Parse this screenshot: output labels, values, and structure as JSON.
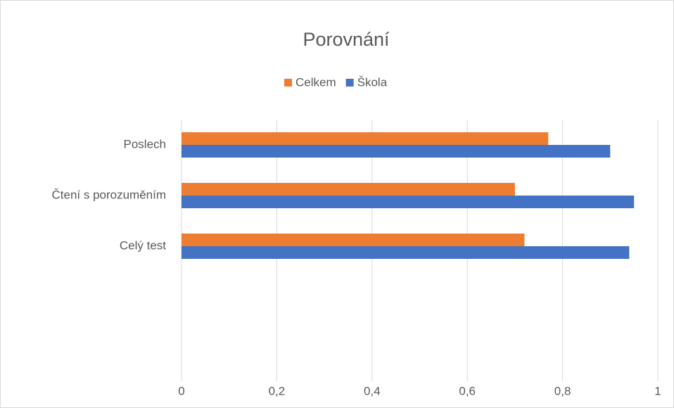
{
  "chart_data": {
    "type": "hbar",
    "title": "Porovnání",
    "categories": [
      "Poslech",
      "Čtení s porozuměním",
      "Celý test",
      null,
      null
    ],
    "series": [
      {
        "name": "Celkem",
        "color": "#ed7d31",
        "values": [
          0.77,
          0.7,
          0.72,
          null,
          null
        ]
      },
      {
        "name": "Škola",
        "color": "#4472c4",
        "values": [
          0.9,
          0.95,
          0.94,
          null,
          null
        ]
      }
    ],
    "xlim": [
      0,
      1
    ],
    "xticks": [
      0,
      {
        "value": 0.2,
        "label": "0,2"
      },
      {
        "value": 0.4,
        "label": "0,4"
      },
      {
        "value": 0.6,
        "label": "0,6"
      },
      {
        "value": 0.8,
        "label": "0,8"
      },
      1
    ],
    "grid": true,
    "legend": "top"
  }
}
